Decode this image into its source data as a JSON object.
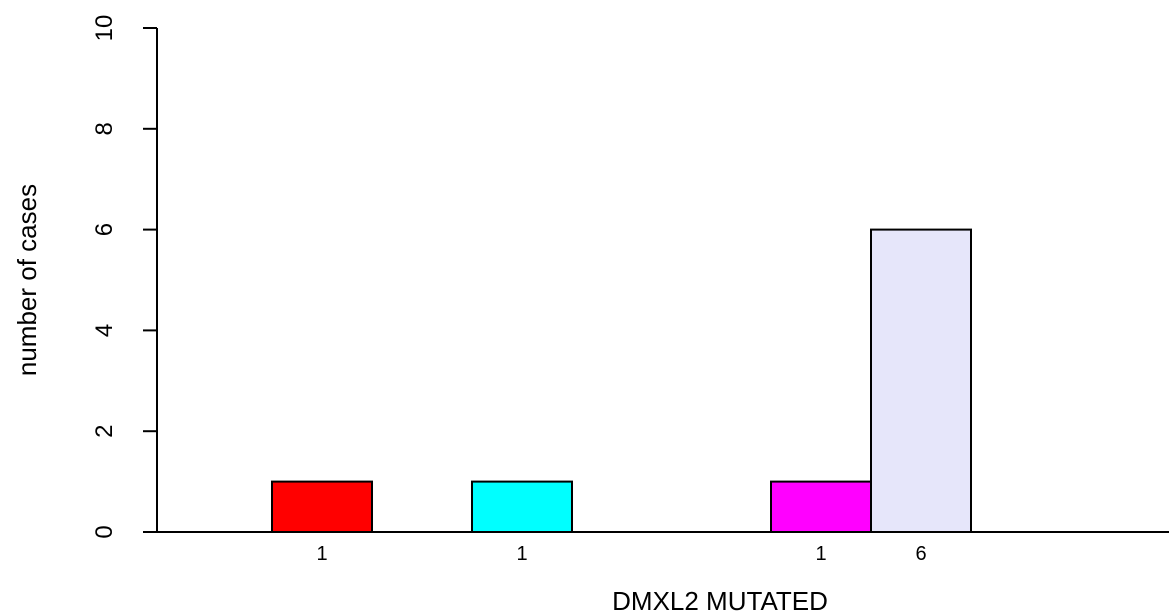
{
  "chart_data": {
    "type": "bar",
    "title": "",
    "xlabel": "DMXL2 MUTATED",
    "ylabel": "number of cases",
    "ylim": [
      0,
      10
    ],
    "yticks": [
      0,
      2,
      4,
      6,
      8,
      10
    ],
    "grid": false,
    "bars": [
      {
        "value": 1,
        "label": "1",
        "color": "#ff0000"
      },
      {
        "value": 1,
        "label": "1",
        "color": "#00ffff"
      },
      {
        "value": 1,
        "label": "1",
        "color": "#ff00ff"
      },
      {
        "value": 6,
        "label": "6",
        "color": "#e6e6fa"
      }
    ]
  }
}
